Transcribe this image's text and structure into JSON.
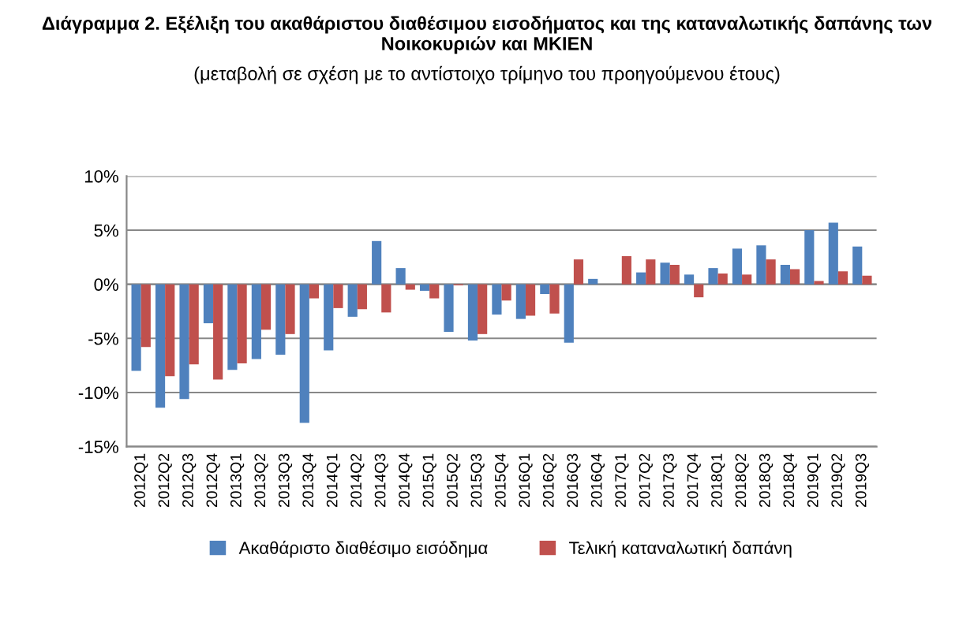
{
  "chart_data": {
    "type": "bar",
    "title": "Διάγραμμα 2. Εξέλιξη του ακαθάριστου διαθέσιμου εισοδήματος και της καταναλωτικής δαπάνης των Νοικοκυριών και ΜΚΙΕΝ",
    "subtitle": "(μεταβολή σε σχέση με το αντίστοιχο τρίμηνο του προηγούμενου έτους)",
    "categories": [
      "2012Q1",
      "2012Q2",
      "2012Q3",
      "2012Q4",
      "2013Q1",
      "2013Q2",
      "2013Q3",
      "2013Q4",
      "2014Q1",
      "2014Q2",
      "2014Q3",
      "2014Q4",
      "2015Q1",
      "2015Q2",
      "2015Q3",
      "2015Q4",
      "2016Q1",
      "2016Q2",
      "2016Q3",
      "2016Q4",
      "2017Q1",
      "2017Q2",
      "2017Q3",
      "2017Q4",
      "2018Q1",
      "2018Q2",
      "2018Q3",
      "2018Q4",
      "2019Q1",
      "2019Q2",
      "2019Q3"
    ],
    "series": [
      {
        "name": "Ακαθάριστο διαθέσιμο εισόδημα",
        "color": "#4f81bd",
        "values": [
          -8.0,
          -11.4,
          -10.6,
          -3.6,
          -7.9,
          -6.9,
          -6.5,
          -12.8,
          -6.1,
          -3.0,
          4.0,
          1.5,
          -0.6,
          -4.4,
          -5.2,
          -2.8,
          -3.2,
          -0.9,
          -5.4,
          0.5,
          0.0,
          1.1,
          2.0,
          0.9,
          1.5,
          3.3,
          3.6,
          1.8,
          5.0,
          5.7,
          3.5
        ]
      },
      {
        "name": "Τελική καταναλωτική δαπάνη",
        "color": "#c0504d",
        "values": [
          -5.8,
          -8.5,
          -7.4,
          -8.8,
          -7.3,
          -4.2,
          -4.6,
          -1.3,
          -2.2,
          -2.3,
          -2.6,
          -0.5,
          -1.3,
          -0.1,
          -4.6,
          -1.5,
          -2.9,
          -2.7,
          2.3,
          0.0,
          2.6,
          2.3,
          1.8,
          -1.2,
          1.0,
          0.9,
          2.3,
          1.4,
          0.3,
          1.2,
          0.8
        ]
      }
    ],
    "ylim": [
      -15,
      10
    ],
    "yticks": [
      {
        "value": -15,
        "label": "-15%"
      },
      {
        "value": -10,
        "label": "-10%"
      },
      {
        "value": -5,
        "label": "-5%"
      },
      {
        "value": 0,
        "label": "0%"
      },
      {
        "value": 5,
        "label": "5%"
      },
      {
        "value": 10,
        "label": "10%"
      }
    ],
    "grid": "y",
    "legend": "bottom"
  }
}
